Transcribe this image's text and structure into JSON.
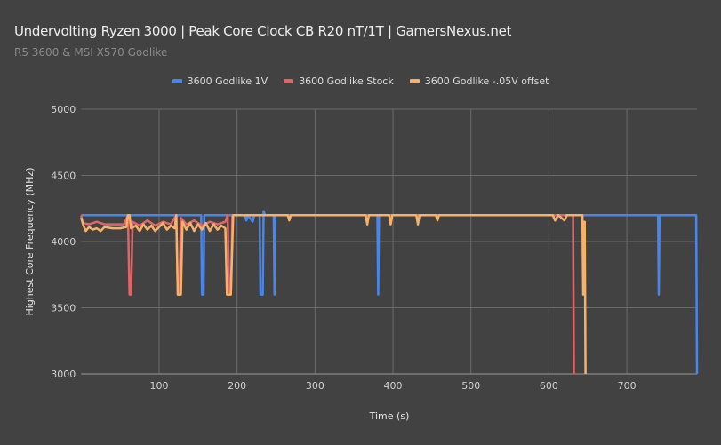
{
  "chart_data": {
    "type": "line",
    "title": "Undervolting Ryzen 3000 | Peak Core Clock CB R20 nT/1T | GamersNexus.net",
    "subtitle": "R5 3600 & MSI X570 Godlike",
    "xlabel": "Time (s)",
    "ylabel": "Highest Core Frequency (MHz)",
    "xlim": [
      0,
      790
    ],
    "ylim": [
      3000,
      5000
    ],
    "xticks": [
      100,
      200,
      300,
      400,
      500,
      600,
      700
    ],
    "yticks": [
      3000,
      3500,
      4000,
      4500,
      5000
    ],
    "grid": true,
    "legend_position": "top",
    "series": [
      {
        "name": "3600 Godlike 1V",
        "color": "#4a86e8",
        "points": [
          [
            0,
            4200
          ],
          [
            154,
            4200
          ],
          [
            155,
            3600
          ],
          [
            157,
            3600
          ],
          [
            158,
            4200
          ],
          [
            210,
            4200
          ],
          [
            212,
            4160
          ],
          [
            214,
            4200
          ],
          [
            220,
            4150
          ],
          [
            222,
            4200
          ],
          [
            229,
            4200
          ],
          [
            230,
            3600
          ],
          [
            233,
            3600
          ],
          [
            234,
            4230
          ],
          [
            236,
            4200
          ],
          [
            247,
            4200
          ],
          [
            248,
            3600
          ],
          [
            249,
            4200
          ],
          [
            380,
            4200
          ],
          [
            381,
            3600
          ],
          [
            382,
            4200
          ],
          [
            740,
            4200
          ],
          [
            741,
            3600
          ],
          [
            742,
            4200
          ],
          [
            789,
            4200
          ],
          [
            790,
            3000
          ]
        ]
      },
      {
        "name": "3600 Godlike Stock",
        "color": "#e06666",
        "points": [
          [
            0,
            4200
          ],
          [
            2,
            4140
          ],
          [
            10,
            4130
          ],
          [
            20,
            4150
          ],
          [
            30,
            4130
          ],
          [
            40,
            4130
          ],
          [
            55,
            4130
          ],
          [
            60,
            4200
          ],
          [
            62,
            3600
          ],
          [
            64,
            3600
          ],
          [
            66,
            4150
          ],
          [
            75,
            4120
          ],
          [
            85,
            4160
          ],
          [
            95,
            4120
          ],
          [
            105,
            4150
          ],
          [
            115,
            4130
          ],
          [
            122,
            4200
          ],
          [
            124,
            3600
          ],
          [
            126,
            3600
          ],
          [
            128,
            4180
          ],
          [
            135,
            4130
          ],
          [
            145,
            4160
          ],
          [
            155,
            4120
          ],
          [
            165,
            4150
          ],
          [
            175,
            4130
          ],
          [
            185,
            4150
          ],
          [
            188,
            4200
          ],
          [
            190,
            3600
          ],
          [
            192,
            3600
          ],
          [
            194,
            4200
          ],
          [
            631,
            4200
          ],
          [
            632,
            3000
          ]
        ]
      },
      {
        "name": "3600 Godlike -.05V offset",
        "color": "#f6b26b",
        "points": [
          [
            0,
            4180
          ],
          [
            3,
            4120
          ],
          [
            6,
            4080
          ],
          [
            10,
            4110
          ],
          [
            15,
            4090
          ],
          [
            20,
            4100
          ],
          [
            25,
            4080
          ],
          [
            30,
            4110
          ],
          [
            40,
            4100
          ],
          [
            50,
            4100
          ],
          [
            58,
            4110
          ],
          [
            60,
            4200
          ],
          [
            62,
            4200
          ],
          [
            64,
            4100
          ],
          [
            70,
            4120
          ],
          [
            75,
            4080
          ],
          [
            80,
            4130
          ],
          [
            85,
            4090
          ],
          [
            90,
            4120
          ],
          [
            95,
            4080
          ],
          [
            100,
            4110
          ],
          [
            105,
            4140
          ],
          [
            110,
            4090
          ],
          [
            115,
            4120
          ],
          [
            120,
            4100
          ],
          [
            122,
            4200
          ],
          [
            124,
            3600
          ],
          [
            128,
            3600
          ],
          [
            130,
            4150
          ],
          [
            135,
            4090
          ],
          [
            140,
            4140
          ],
          [
            145,
            4080
          ],
          [
            150,
            4130
          ],
          [
            155,
            4090
          ],
          [
            160,
            4140
          ],
          [
            165,
            4080
          ],
          [
            170,
            4130
          ],
          [
            175,
            4090
          ],
          [
            180,
            4120
          ],
          [
            185,
            4100
          ],
          [
            187,
            3600
          ],
          [
            192,
            3600
          ],
          [
            195,
            4200
          ],
          [
            265,
            4200
          ],
          [
            267,
            4160
          ],
          [
            269,
            4200
          ],
          [
            365,
            4200
          ],
          [
            367,
            4130
          ],
          [
            369,
            4200
          ],
          [
            395,
            4200
          ],
          [
            397,
            4130
          ],
          [
            399,
            4200
          ],
          [
            430,
            4200
          ],
          [
            432,
            4130
          ],
          [
            434,
            4200
          ],
          [
            455,
            4200
          ],
          [
            457,
            4160
          ],
          [
            459,
            4200
          ],
          [
            605,
            4200
          ],
          [
            608,
            4160
          ],
          [
            612,
            4200
          ],
          [
            620,
            4160
          ],
          [
            623,
            4200
          ],
          [
            643,
            4200
          ],
          [
            644,
            3600
          ],
          [
            645,
            4150
          ],
          [
            646,
            4150
          ],
          [
            647,
            3000
          ]
        ]
      }
    ]
  }
}
